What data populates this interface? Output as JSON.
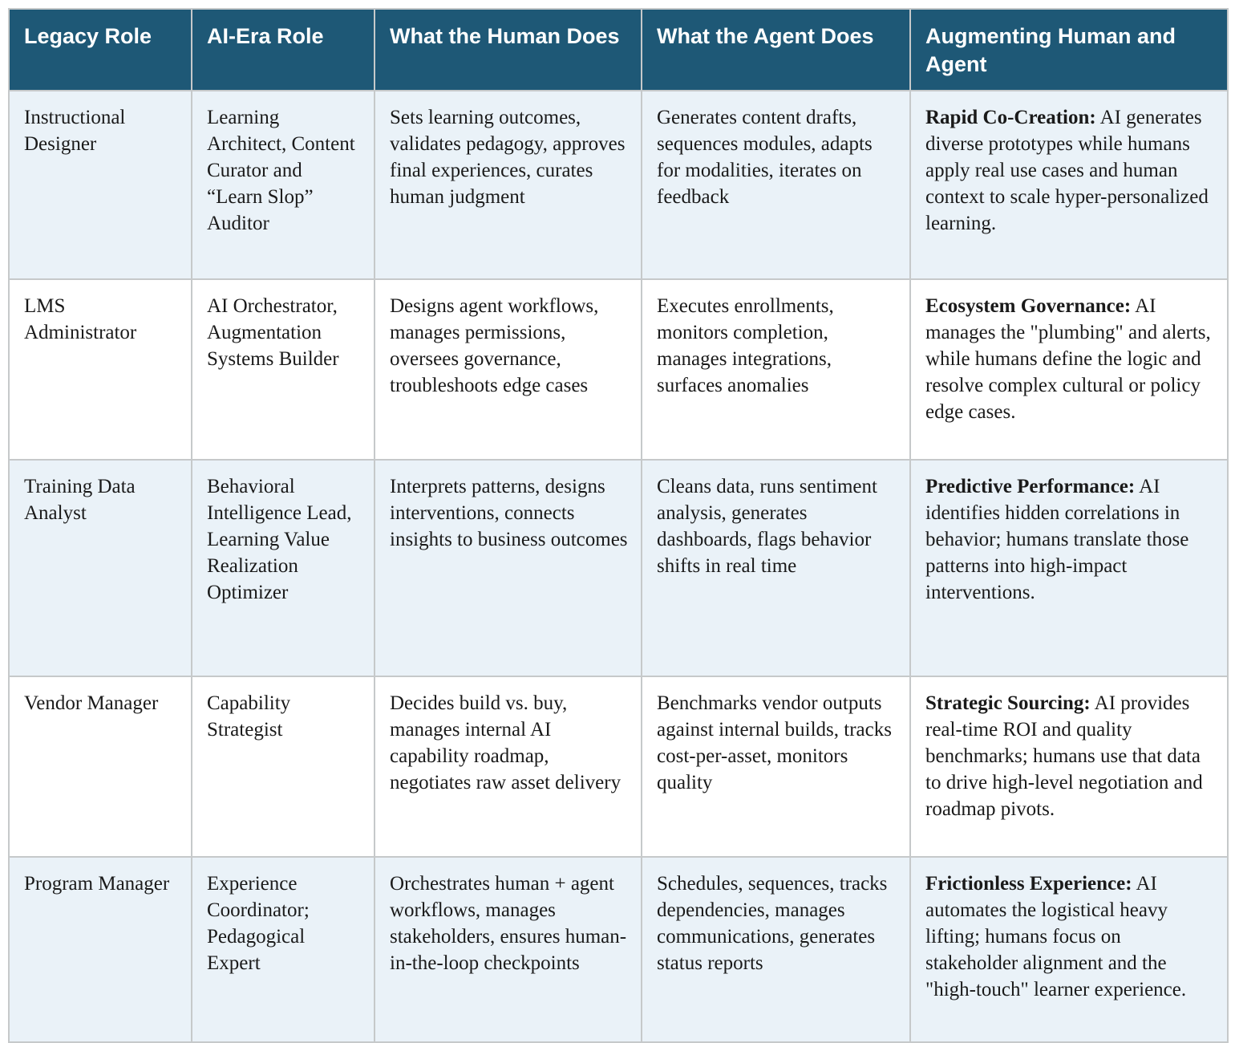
{
  "colors": {
    "header_bg": "#1e5876",
    "header_text": "#ffffff",
    "row_alt_bg": "#eaf2f8",
    "row_plain_bg": "#ffffff",
    "border": "#c6c9ca",
    "body_text": "#1a1a1a"
  },
  "table": {
    "headers": [
      "Legacy Role",
      "AI-Era Role",
      "What the Human Does",
      "What the Agent Does",
      "Augmenting Human and Agent"
    ],
    "rows": [
      {
        "legacy_role": "Instructional Designer",
        "ai_era_role": "Learning Architect, Content Curator and “Learn Slop” Auditor",
        "human_does": "Sets learning outcomes, validates pedagogy, approves final experiences, curates human judgment",
        "agent_does": "Generates content drafts, sequences modules, adapts for modalities, iterates on feedback",
        "augment_lead": "Rapid Co-Creation:",
        "augment_text": "AI generates diverse prototypes while humans apply real use cases and human context to scale hyper-personalized learning."
      },
      {
        "legacy_role": "LMS Administrator",
        "ai_era_role": "AI Orchestrator, Augmentation Systems Builder",
        "human_does": "Designs agent workflows, manages permissions, oversees governance, troubleshoots edge cases",
        "agent_does": "Executes enrollments, monitors completion, manages integrations, surfaces anomalies",
        "augment_lead": "Ecosystem Governance:",
        "augment_text": "AI manages the \"plumbing\" and alerts, while humans define the logic and resolve complex cultural or policy edge cases."
      },
      {
        "legacy_role": "Training Data Analyst",
        "ai_era_role": "Behavioral Intelligence Lead, Learning Value Realization Optimizer",
        "human_does": "Interprets patterns, designs interventions, connects insights to business outcomes",
        "agent_does": "Cleans data, runs sentiment analysis, generates dashboards, flags behavior shifts in real time",
        "augment_lead": "Predictive Performance:",
        "augment_text": "AI identifies hidden correlations in behavior; humans translate those patterns into high-impact interventions."
      },
      {
        "legacy_role": "Vendor Manager",
        "ai_era_role": "Capability Strategist",
        "human_does": "Decides build vs. buy, manages internal AI capability roadmap, negotiates raw asset delivery",
        "agent_does": "Benchmarks vendor outputs against internal builds, tracks cost-per-asset, monitors quality",
        "augment_lead": "Strategic Sourcing:",
        "augment_text": "AI provides real-time ROI and quality benchmarks; humans use that data to drive high-level negotiation and roadmap pivots."
      },
      {
        "legacy_role": "Program Manager",
        "ai_era_role": "Experience Coordinator; Pedagogical Expert",
        "human_does": "Orchestrates human + agent workflows, manages stakeholders, ensures human-in-the-loop checkpoints",
        "agent_does": "Schedules, sequences, tracks dependencies, manages communications, generates status reports",
        "augment_lead": "Frictionless Experience:",
        "augment_text": "AI automates the logistical heavy lifting; humans focus on stakeholder alignment and the \"high-touch\" learner experience."
      }
    ]
  }
}
